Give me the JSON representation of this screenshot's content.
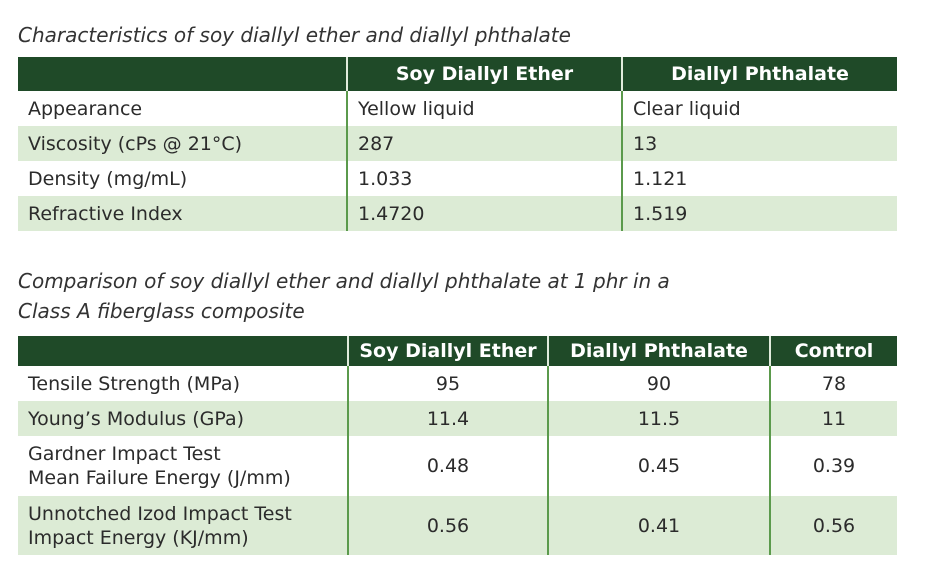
{
  "table1": {
    "title": "Characteristics of soy diallyl ether and diallyl phthalate",
    "header": [
      "Soy Diallyl Ether",
      "Diallyl Phthalate"
    ],
    "rows": [
      [
        "Appearance",
        "Yellow liquid",
        "Clear liquid"
      ],
      [
        "Viscosity (cPs @ 21°C)",
        "287",
        "13"
      ],
      [
        "Density (mg/mL)",
        "1.033",
        "1.121"
      ],
      [
        "Refractive Index",
        "1.4720",
        "1.519"
      ]
    ]
  },
  "table2": {
    "title": [
      "Comparison of soy diallyl ether and diallyl phthalate at 1 phr in a",
      "Class A fiberglass composite"
    ],
    "header": [
      "Soy Diallyl Ether",
      "Diallyl Phthalate",
      "Control"
    ],
    "rows": [
      [
        [
          "Tensile Strength (MPa)"
        ],
        "95",
        "90",
        "78"
      ],
      [
        [
          "Young’s Modulus (GPa)"
        ],
        "11.4",
        "11.5",
        "11"
      ],
      [
        [
          "Gardner Impact Test",
          "Mean Failure Energy (J/mm)"
        ],
        "0.48",
        "0.45",
        "0.39"
      ],
      [
        [
          "Unnotched Izod Impact Test",
          "Impact Energy (KJ/mm)"
        ],
        "0.56",
        "0.41",
        "0.56"
      ]
    ]
  }
}
